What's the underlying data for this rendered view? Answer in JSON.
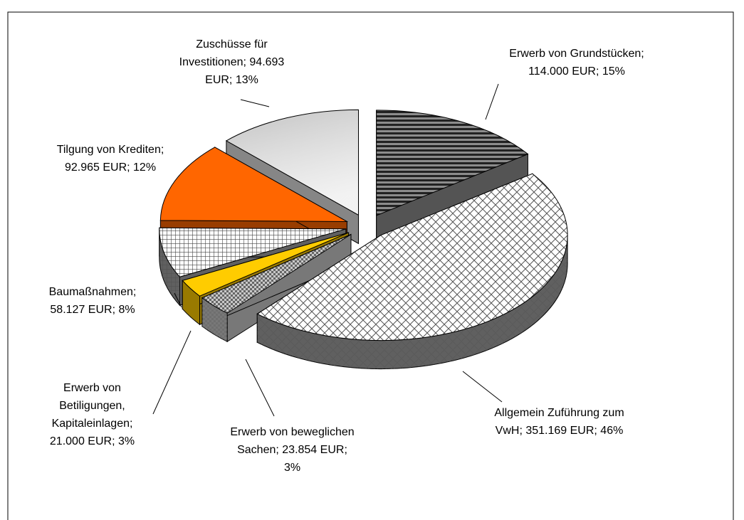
{
  "chart_data": {
    "type": "pie",
    "view": "3d-exploded",
    "categories": [
      "Erwerb von Grundstücken",
      "Allgemein Zuführung zum VwH",
      "Erwerb von beweglichen Sachen",
      "Erwerb von Betiligungen, Kapitaleinlagen",
      "Baumaßnahmen",
      "Tilgung von Krediten",
      "Zuschüsse für Investitionen"
    ],
    "values": [
      114000,
      351169,
      23854,
      21000,
      58127,
      92965,
      94693
    ],
    "value_labels": [
      "114.000 EUR",
      "351.169 EUR",
      "23.854 EUR",
      "21.000 EUR",
      "58.127 EUR",
      "92.965 EUR",
      "94.693 EUR"
    ],
    "percents": [
      15,
      46,
      3,
      3,
      8,
      12,
      13
    ],
    "percent_labels": [
      "15%",
      "46%",
      "3%",
      "3%",
      "8%",
      "12%",
      "13%"
    ],
    "label_separator": "; ",
    "colors": [
      "#8c8c8c",
      "#ffffff",
      "#c8c8c8",
      "#ffcc00",
      "#ffffff",
      "#ff6600",
      "#e0e0e0"
    ]
  }
}
